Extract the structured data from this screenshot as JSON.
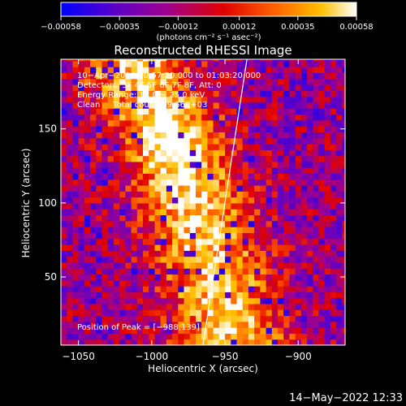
{
  "chart_data": {
    "type": "heatmap",
    "title": "Reconstructed RHESSI Image",
    "xlabel": "Heliocentric X (arcsec)",
    "ylabel": "Heliocentric Y (arcsec)",
    "xlim": [
      -1062,
      -868
    ],
    "ylim": [
      4,
      197
    ],
    "x_ticks": [
      -1050,
      -1000,
      -950,
      -900
    ],
    "y_ticks": [
      50,
      100,
      150
    ],
    "x_tick_labels": [
      "−1050",
      "−1000",
      "−950",
      "−900"
    ],
    "y_tick_labels": [
      "50",
      "100",
      "150"
    ],
    "colorbar": {
      "range": [
        -0.00058,
        0.00058
      ],
      "tick_values": [
        -0.00058,
        -0.00035,
        -0.00012,
        0.00012,
        0.00035,
        0.00058
      ],
      "tick_labels": [
        "−0.00058",
        "−0.00035",
        "−0.00012",
        "0.00012",
        "0.00035",
        "0.00058"
      ],
      "unit_label": "(photons cm⁻² s⁻¹ asec⁻²)"
    },
    "annotations": [
      "10−Apr−2014 00:57:20.000 to 01:03:20.000",
      "Detectors: 3F 4F 5F 6F 7F 8F, Att: 0",
      "Energy Range: 12.0 − 25.0 keV",
      "Clean     Total counts: 9.56E+03"
    ],
    "peak_label": "Position of Peak = [−988,139]",
    "peak": [
      -988,
      139
    ],
    "limb_line": [
      [
        -965,
        4
      ],
      [
        -935,
        197
      ]
    ],
    "emission_ridge": [
      [
        -1010,
        190
      ],
      [
        -990,
        150
      ],
      [
        -975,
        110
      ],
      [
        -960,
        60
      ],
      [
        -945,
        10
      ]
    ],
    "grid": false,
    "colors": {
      "background": "#000000",
      "text": "#ffffff",
      "colormap": [
        "#0000ff",
        "#5a00c8",
        "#a0008c",
        "#e00000",
        "#ff6000",
        "#ffc000",
        "#ffffff"
      ]
    }
  },
  "footer": {
    "timestamp": "14−May−2022 12:33"
  }
}
